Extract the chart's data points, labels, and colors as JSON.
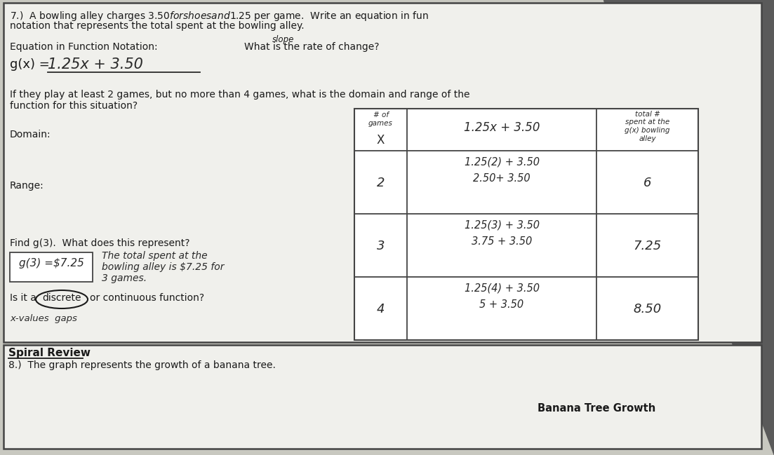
{
  "bg_color": "#c8c8c0",
  "paper_color": "#f0f0ec",
  "border_color": "#444444",
  "dark_corner_color": "#5a5a5a",
  "text_color": "#1a1a1a",
  "handwrite_color": "#2a2a2a",
  "line1": "7.)  A bowling alley charges $3.50 for shoes and $1.25 per game.  Write an equation in fun",
  "line2": "notation that represents the total spent at the bowling alley.",
  "label_eq": "Equation in Function Notation:",
  "label_slope": "slope",
  "label_roc": "What is the rate of change?",
  "eq_prefix": "g(x) = ",
  "eq_answer": "1.25x + 3.50",
  "domain_range_line1": "If they play at least 2 games, but no more than 4 games, what is the domain and range of the",
  "domain_range_line2": "function for this situation?",
  "domain_label": "Domain:",
  "range_label": "Range:",
  "find_g3": "Find g(3).  What does this represent?",
  "g3_box_text": "g(3) =$7.25",
  "explain1": "The total spent at the",
  "explain2": "bowling alley is $7.25 for",
  "explain3": "3 games.",
  "discrete_pre": "Is it a ",
  "discrete_word": "discrete",
  "discrete_post": "or continuous function?",
  "xvalues_note": "x-values  gaps",
  "tbl_label_x": "# of\ngames",
  "tbl_x": "X",
  "tbl_eq": "1.25x + 3.50",
  "tbl_gx_line1": "total #",
  "tbl_gx_line2": "spent at the",
  "tbl_gx_line3": "g(x) bowling",
  "tbl_gx_line4": "alley",
  "rows": [
    {
      "x": "2",
      "calc1": "1.25(2) + 3.50",
      "calc2": "2.50+ 3.50",
      "result": "6"
    },
    {
      "x": "3",
      "calc1": "1.25(3) + 3.50",
      "calc2": "3.75 + 3.50",
      "result": "7.25"
    },
    {
      "x": "4",
      "calc1": "1.25(4) + 3.50",
      "calc2": "5 + 3.50",
      "result": "8.50"
    }
  ],
  "spiral_bold": "Spiral Review",
  "spiral_sub": "8.)  The graph represents the growth of a banana tree.",
  "banana_title": "Banana Tree Growth"
}
